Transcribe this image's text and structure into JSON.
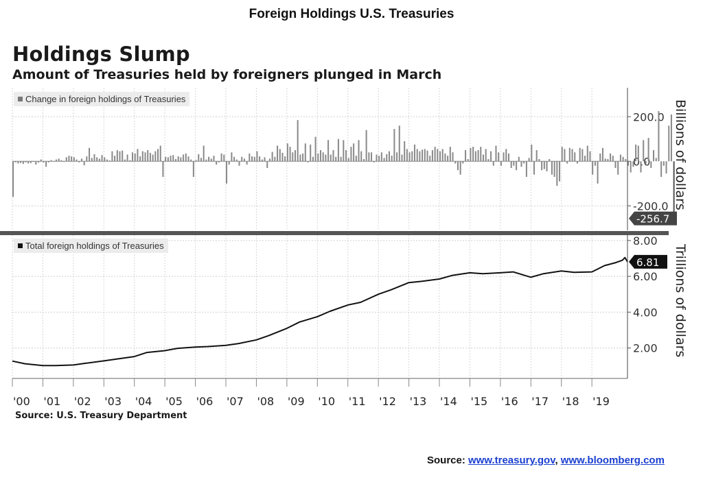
{
  "page": {
    "top_title": "Foreign Holdings U.S. Treasuries",
    "footer_prefix": "Source: ",
    "footer_link1": "www.treasury.gov",
    "footer_sep": ", ",
    "footer_link2": "www.bloomberg.com",
    "link_color": "#1a3fd0"
  },
  "chart_data": [
    {
      "type": "bar",
      "title": "Holdings Slump",
      "subtitle": "Amount of Treasuries held by foreigners plunged in March",
      "legend": "Change in foreign holdings of Treasuries",
      "ylabel": "Billions of dollars",
      "yticks": [
        -200.0,
        0.0,
        200.0
      ],
      "ytick_labels": [
        "-200.0",
        "0.0",
        "200.0"
      ],
      "ylim": [
        -310,
        330
      ],
      "grid": true,
      "legend_position": "top-left",
      "last_value_label": "-256.7",
      "bar_color": "#8a8a8a",
      "x_start": "2000-01",
      "x_end": "2020-03",
      "y_monthly": [
        -160,
        -5,
        -10,
        -8,
        -12,
        -5,
        -10,
        -8,
        -3,
        -15,
        -6,
        8,
        -5,
        -25,
        -5,
        5,
        -2,
        8,
        12,
        5,
        -3,
        18,
        25,
        22,
        18,
        8,
        -5,
        12,
        -18,
        22,
        60,
        15,
        32,
        18,
        12,
        28,
        18,
        8,
        4,
        45,
        25,
        50,
        45,
        48,
        8,
        30,
        5,
        40,
        35,
        55,
        22,
        45,
        40,
        50,
        38,
        30,
        45,
        55,
        70,
        -70,
        20,
        18,
        25,
        28,
        10,
        22,
        18,
        30,
        35,
        22,
        8,
        -70,
        5,
        32,
        15,
        70,
        8,
        20,
        12,
        25,
        -15,
        -5,
        35,
        30,
        -100,
        -15,
        40,
        20,
        8,
        -20,
        20,
        12,
        -15,
        35,
        22,
        20,
        45,
        22,
        8,
        18,
        -30,
        12,
        42,
        20,
        70,
        55,
        38,
        22,
        80,
        65,
        40,
        50,
        185,
        30,
        35,
        80,
        -5,
        75,
        20,
        110,
        35,
        50,
        40,
        30,
        95,
        30,
        50,
        20,
        100,
        20,
        95,
        50,
        15,
        65,
        80,
        25,
        95,
        45,
        10,
        140,
        40,
        40,
        -5,
        30,
        25,
        40,
        15,
        32,
        45,
        25,
        145,
        40,
        160,
        30,
        90,
        55,
        40,
        45,
        75,
        55,
        45,
        52,
        55,
        48,
        25,
        50,
        65,
        55,
        45,
        55,
        35,
        25,
        65,
        40,
        -10,
        -40,
        -60,
        -10,
        50,
        10,
        60,
        65,
        45,
        50,
        65,
        30,
        55,
        10,
        45,
        -20,
        70,
        40,
        -20,
        40,
        55,
        35,
        -30,
        -20,
        -40,
        20,
        -25,
        -10,
        -70,
        15,
        75,
        -60,
        50,
        10,
        -40,
        -35,
        -45,
        10,
        -60,
        -70,
        -110,
        -90,
        65,
        55,
        -10,
        60,
        55,
        40,
        -10,
        60,
        55,
        25,
        70,
        45,
        -60,
        -20,
        -100,
        35,
        60,
        12,
        10,
        35,
        25,
        -30,
        -60,
        30,
        20,
        10,
        -20,
        -50,
        -25,
        75,
        70,
        -50,
        95,
        -10,
        105,
        -30,
        50,
        15,
        225,
        -70,
        -20,
        -55,
        160,
        210,
        -256.7
      ]
    },
    {
      "type": "line",
      "legend": "Total foreign holdings of Treasuries",
      "ylabel": "Trillions of dollars",
      "yticks": [
        2.0,
        4.0,
        6.0,
        8.0
      ],
      "ytick_labels": [
        "2.00",
        "4.00",
        "6.00",
        "8.00"
      ],
      "ylim": [
        0.3,
        8.3
      ],
      "grid": true,
      "legend_position": "top-left",
      "last_value_label": "6.81",
      "line_color": "#111111",
      "x_start": "2000-01",
      "x_end": "2020-03",
      "points": [
        [
          "2000-01",
          1.27
        ],
        [
          "2000-06",
          1.12
        ],
        [
          "2001-01",
          1.02
        ],
        [
          "2001-06",
          1.02
        ],
        [
          "2002-01",
          1.05
        ],
        [
          "2002-06",
          1.15
        ],
        [
          "2003-01",
          1.28
        ],
        [
          "2003-06",
          1.38
        ],
        [
          "2004-01",
          1.52
        ],
        [
          "2004-06",
          1.75
        ],
        [
          "2005-01",
          1.85
        ],
        [
          "2005-06",
          1.98
        ],
        [
          "2006-01",
          2.05
        ],
        [
          "2006-06",
          2.08
        ],
        [
          "2007-01",
          2.15
        ],
        [
          "2007-06",
          2.25
        ],
        [
          "2008-01",
          2.45
        ],
        [
          "2008-06",
          2.7
        ],
        [
          "2009-01",
          3.1
        ],
        [
          "2009-06",
          3.45
        ],
        [
          "2010-01",
          3.75
        ],
        [
          "2010-06",
          4.05
        ],
        [
          "2011-01",
          4.4
        ],
        [
          "2011-06",
          4.55
        ],
        [
          "2012-01",
          5.0
        ],
        [
          "2012-06",
          5.25
        ],
        [
          "2013-01",
          5.65
        ],
        [
          "2013-06",
          5.72
        ],
        [
          "2014-01",
          5.85
        ],
        [
          "2014-06",
          6.05
        ],
        [
          "2015-01",
          6.2
        ],
        [
          "2015-06",
          6.15
        ],
        [
          "2016-01",
          6.2
        ],
        [
          "2016-06",
          6.25
        ],
        [
          "2017-01",
          5.95
        ],
        [
          "2017-06",
          6.15
        ],
        [
          "2018-01",
          6.3
        ],
        [
          "2018-06",
          6.22
        ],
        [
          "2019-01",
          6.25
        ],
        [
          "2019-06",
          6.6
        ],
        [
          "2019-10",
          6.75
        ],
        [
          "2020-01",
          6.9
        ],
        [
          "2020-02",
          7.05
        ],
        [
          "2020-03",
          6.81
        ]
      ]
    }
  ],
  "x_axis": {
    "labels": [
      "'00",
      "'01",
      "'02",
      "'03",
      "'04",
      "'05",
      "'06",
      "'07",
      "'08",
      "'09",
      "'10",
      "'11",
      "'12",
      "'13",
      "'14",
      "'15",
      "'16",
      "'17",
      "'18",
      "'19"
    ],
    "years": [
      2000,
      2001,
      2002,
      2003,
      2004,
      2005,
      2006,
      2007,
      2008,
      2009,
      2010,
      2011,
      2012,
      2013,
      2014,
      2015,
      2016,
      2017,
      2018,
      2019
    ]
  },
  "source": "Source: U.S. Treasury Department"
}
